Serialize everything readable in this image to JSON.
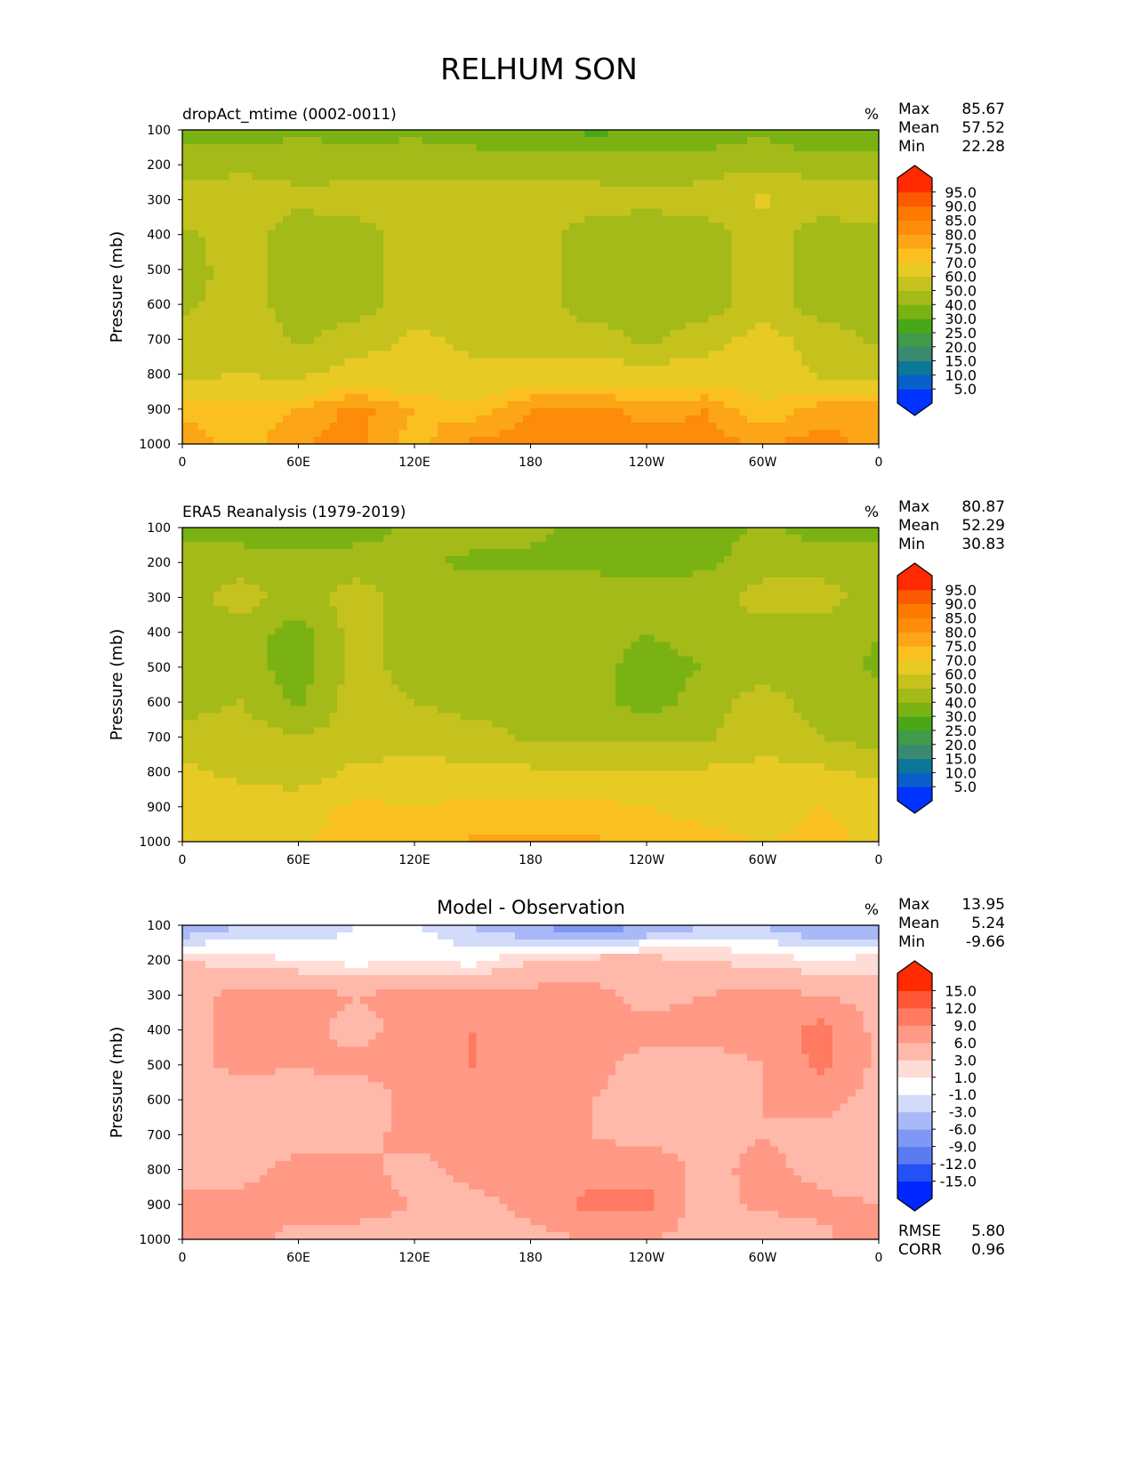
{
  "title": "RELHUM SON",
  "chart_data": [
    {
      "type": "heatmap",
      "subtitle": "dropAct_mtime (0002-0011)",
      "units": "%",
      "stats": [
        {
          "label": "Max",
          "value": "85.67"
        },
        {
          "label": "Mean",
          "value": "57.52"
        },
        {
          "label": "Min",
          "value": "22.28"
        }
      ],
      "ylabel": "Pressure (mb)",
      "xticks": [
        "0",
        "60E",
        "120E",
        "180",
        "120W",
        "60W",
        "0"
      ],
      "yticks": [
        "100",
        "200",
        "300",
        "400",
        "500",
        "600",
        "700",
        "800",
        "900",
        "1000"
      ],
      "ylim": [
        1000,
        100
      ],
      "x_lon": [
        0,
        30,
        60,
        90,
        120,
        150,
        180,
        210,
        240,
        270,
        300,
        330,
        360
      ],
      "y_pressure": [
        100,
        200,
        300,
        400,
        500,
        600,
        700,
        800,
        900,
        1000
      ],
      "values": [
        [
          35,
          33,
          38,
          36,
          38,
          35,
          33,
          28,
          29,
          33,
          38,
          30,
          35
        ],
        [
          45,
          48,
          47,
          45,
          46,
          45,
          45,
          45,
          45,
          45,
          48,
          45,
          45
        ],
        [
          55,
          55,
          52,
          55,
          55,
          55,
          55,
          55,
          52,
          55,
          62,
          55,
          55
        ],
        [
          48,
          55,
          45,
          45,
          55,
          55,
          55,
          45,
          45,
          45,
          55,
          45,
          48
        ],
        [
          45,
          55,
          45,
          45,
          55,
          55,
          55,
          45,
          45,
          45,
          55,
          45,
          45
        ],
        [
          48,
          55,
          45,
          45,
          55,
          55,
          55,
          45,
          45,
          45,
          55,
          45,
          45
        ],
        [
          55,
          58,
          48,
          55,
          62,
          58,
          55,
          55,
          48,
          55,
          65,
          55,
          48
        ],
        [
          58,
          60,
          58,
          65,
          62,
          62,
          65,
          65,
          65,
          65,
          68,
          58,
          55
        ],
        [
          72,
          72,
          75,
          82,
          75,
          72,
          80,
          82,
          78,
          80,
          70,
          78,
          78
        ],
        [
          80,
          72,
          80,
          82,
          72,
          82,
          82,
          82,
          82,
          82,
          80,
          82,
          78
        ]
      ],
      "levels": [
        5,
        10,
        15,
        20,
        25,
        30,
        40,
        50,
        60,
        70,
        75,
        80,
        85,
        90,
        95
      ],
      "level_labels": [
        "5.0",
        "10.0",
        "15.0",
        "20.0",
        "25.0",
        "30.0",
        "40.0",
        "50.0",
        "60.0",
        "70.0",
        "75.0",
        "80.0",
        "85.0",
        "90.0",
        "95.0"
      ],
      "colors": [
        "#0033ff",
        "#0a5fcc",
        "#0a7896",
        "#3a8a72",
        "#3f9a4a",
        "#4aa818",
        "#7ab214",
        "#a3ba18",
        "#c5c21e",
        "#e8ca24",
        "#fac020",
        "#fca516",
        "#fc8c0a",
        "#fc7a00",
        "#fc5a00",
        "#ff2a00"
      ]
    },
    {
      "type": "heatmap",
      "subtitle": "ERA5 Reanalysis (1979-2019)",
      "units": "%",
      "stats": [
        {
          "label": "Max",
          "value": "80.87"
        },
        {
          "label": "Mean",
          "value": "52.29"
        },
        {
          "label": "Min",
          "value": "30.83"
        }
      ],
      "ylabel": "Pressure (mb)",
      "xticks": [
        "0",
        "60E",
        "120E",
        "180",
        "120W",
        "60W",
        "0"
      ],
      "yticks": [
        "100",
        "200",
        "300",
        "400",
        "500",
        "600",
        "700",
        "800",
        "900",
        "1000"
      ],
      "ylim": [
        1000,
        100
      ],
      "x_lon": [
        0,
        30,
        60,
        90,
        120,
        150,
        180,
        210,
        240,
        270,
        300,
        330,
        360
      ],
      "y_pressure": [
        100,
        200,
        300,
        400,
        500,
        600,
        700,
        800,
        900,
        1000
      ],
      "values": [
        [
          35,
          35,
          35,
          35,
          42,
          45,
          42,
          38,
          36,
          35,
          42,
          35,
          35
        ],
        [
          45,
          45,
          42,
          45,
          42,
          38,
          38,
          38,
          35,
          38,
          45,
          45,
          45
        ],
        [
          45,
          55,
          45,
          55,
          45,
          45,
          45,
          45,
          45,
          45,
          55,
          55,
          45
        ],
        [
          45,
          45,
          35,
          55,
          45,
          45,
          45,
          45,
          40,
          45,
          45,
          45,
          40
        ],
        [
          45,
          45,
          35,
          55,
          45,
          45,
          45,
          45,
          35,
          40,
          45,
          45,
          38
        ],
        [
          45,
          50,
          38,
          55,
          50,
          45,
          45,
          45,
          35,
          45,
          55,
          45,
          45
        ],
        [
          55,
          55,
          50,
          55,
          58,
          55,
          48,
          48,
          48,
          48,
          58,
          50,
          45
        ],
        [
          62,
          58,
          55,
          62,
          62,
          62,
          62,
          62,
          62,
          62,
          62,
          62,
          58
        ],
        [
          65,
          65,
          65,
          72,
          70,
          72,
          72,
          72,
          70,
          68,
          65,
          70,
          68
        ],
        [
          68,
          68,
          68,
          75,
          70,
          76,
          76,
          76,
          72,
          72,
          70,
          72,
          68
        ]
      ],
      "levels": [
        5,
        10,
        15,
        20,
        25,
        30,
        40,
        50,
        60,
        70,
        75,
        80,
        85,
        90,
        95
      ],
      "level_labels": [
        "5.0",
        "10.0",
        "15.0",
        "20.0",
        "25.0",
        "30.0",
        "40.0",
        "50.0",
        "60.0",
        "70.0",
        "75.0",
        "80.0",
        "85.0",
        "90.0",
        "95.0"
      ],
      "colors": [
        "#0033ff",
        "#0a5fcc",
        "#0a7896",
        "#3a8a72",
        "#3f9a4a",
        "#4aa818",
        "#7ab214",
        "#a3ba18",
        "#c5c21e",
        "#e8ca24",
        "#fac020",
        "#fca516",
        "#fc8c0a",
        "#fc7a00",
        "#fc5a00",
        "#ff2a00"
      ]
    },
    {
      "type": "heatmap",
      "title": "Model - Observation",
      "units": "%",
      "stats": [
        {
          "label": "Max",
          "value": "13.95"
        },
        {
          "label": "Mean",
          "value": "5.24"
        },
        {
          "label": "Min",
          "value": "-9.66"
        }
      ],
      "extra_stats": [
        {
          "label": "RMSE",
          "value": "5.80"
        },
        {
          "label": "CORR",
          "value": "0.96"
        }
      ],
      "ylabel": "Pressure (mb)",
      "xticks": [
        "0",
        "60E",
        "120E",
        "180",
        "120W",
        "60W",
        "0"
      ],
      "yticks": [
        "100",
        "200",
        "300",
        "400",
        "500",
        "600",
        "700",
        "800",
        "900",
        "1000"
      ],
      "ylim": [
        1000,
        100
      ],
      "x_lon": [
        0,
        30,
        60,
        90,
        120,
        150,
        180,
        210,
        240,
        270,
        300,
        330,
        360
      ],
      "y_pressure": [
        100,
        200,
        300,
        400,
        500,
        600,
        700,
        800,
        900,
        1000
      ],
      "values": [
        [
          -6,
          -3,
          -3,
          -1,
          -1,
          -3,
          -6,
          -9,
          -6,
          -3,
          -3,
          -6,
          -6
        ],
        [
          3,
          2,
          1,
          0,
          1,
          0,
          3,
          4,
          4,
          3,
          2,
          1,
          2
        ],
        [
          5,
          7,
          7,
          6,
          7,
          7,
          7,
          7,
          5,
          6,
          7,
          6,
          5
        ],
        [
          5,
          7,
          7,
          5,
          7,
          9,
          8,
          7,
          7,
          7,
          7,
          10,
          5
        ],
        [
          5,
          7,
          6,
          7,
          7,
          9,
          9,
          7,
          5,
          5,
          6,
          10,
          5
        ],
        [
          5,
          3,
          5,
          4,
          7,
          7,
          9,
          6,
          5,
          5,
          6,
          7,
          5
        ],
        [
          5,
          3,
          5,
          5,
          7,
          7,
          6,
          6,
          5,
          5,
          6,
          5,
          5
        ],
        [
          5,
          5,
          7,
          7,
          5,
          7,
          7,
          7,
          8,
          5,
          7,
          5,
          3
        ],
        [
          7,
          7,
          7,
          7,
          6,
          5,
          7,
          10,
          10,
          4,
          7,
          7,
          6
        ],
        [
          9,
          7,
          5,
          5,
          5,
          3,
          5,
          6,
          6,
          5,
          3,
          5,
          9
        ]
      ],
      "levels": [
        -15,
        -12,
        -9,
        -6,
        -3,
        -1,
        1,
        3,
        6,
        9,
        12,
        15
      ],
      "level_labels": [
        "-15.0",
        "-12.0",
        "-9.0",
        "-6.0",
        "-3.0",
        "-1.0",
        "1.0",
        "3.0",
        "6.0",
        "9.0",
        "12.0",
        "15.0"
      ],
      "colors": [
        "#0026ff",
        "#2450f5",
        "#5b7bf3",
        "#7f98f5",
        "#a9b8f7",
        "#d3dbfb",
        "#ffffff",
        "#ffdcd6",
        "#ffb9aa",
        "#ff9985",
        "#ff7a60",
        "#ff5636",
        "#ff2a00"
      ]
    }
  ]
}
